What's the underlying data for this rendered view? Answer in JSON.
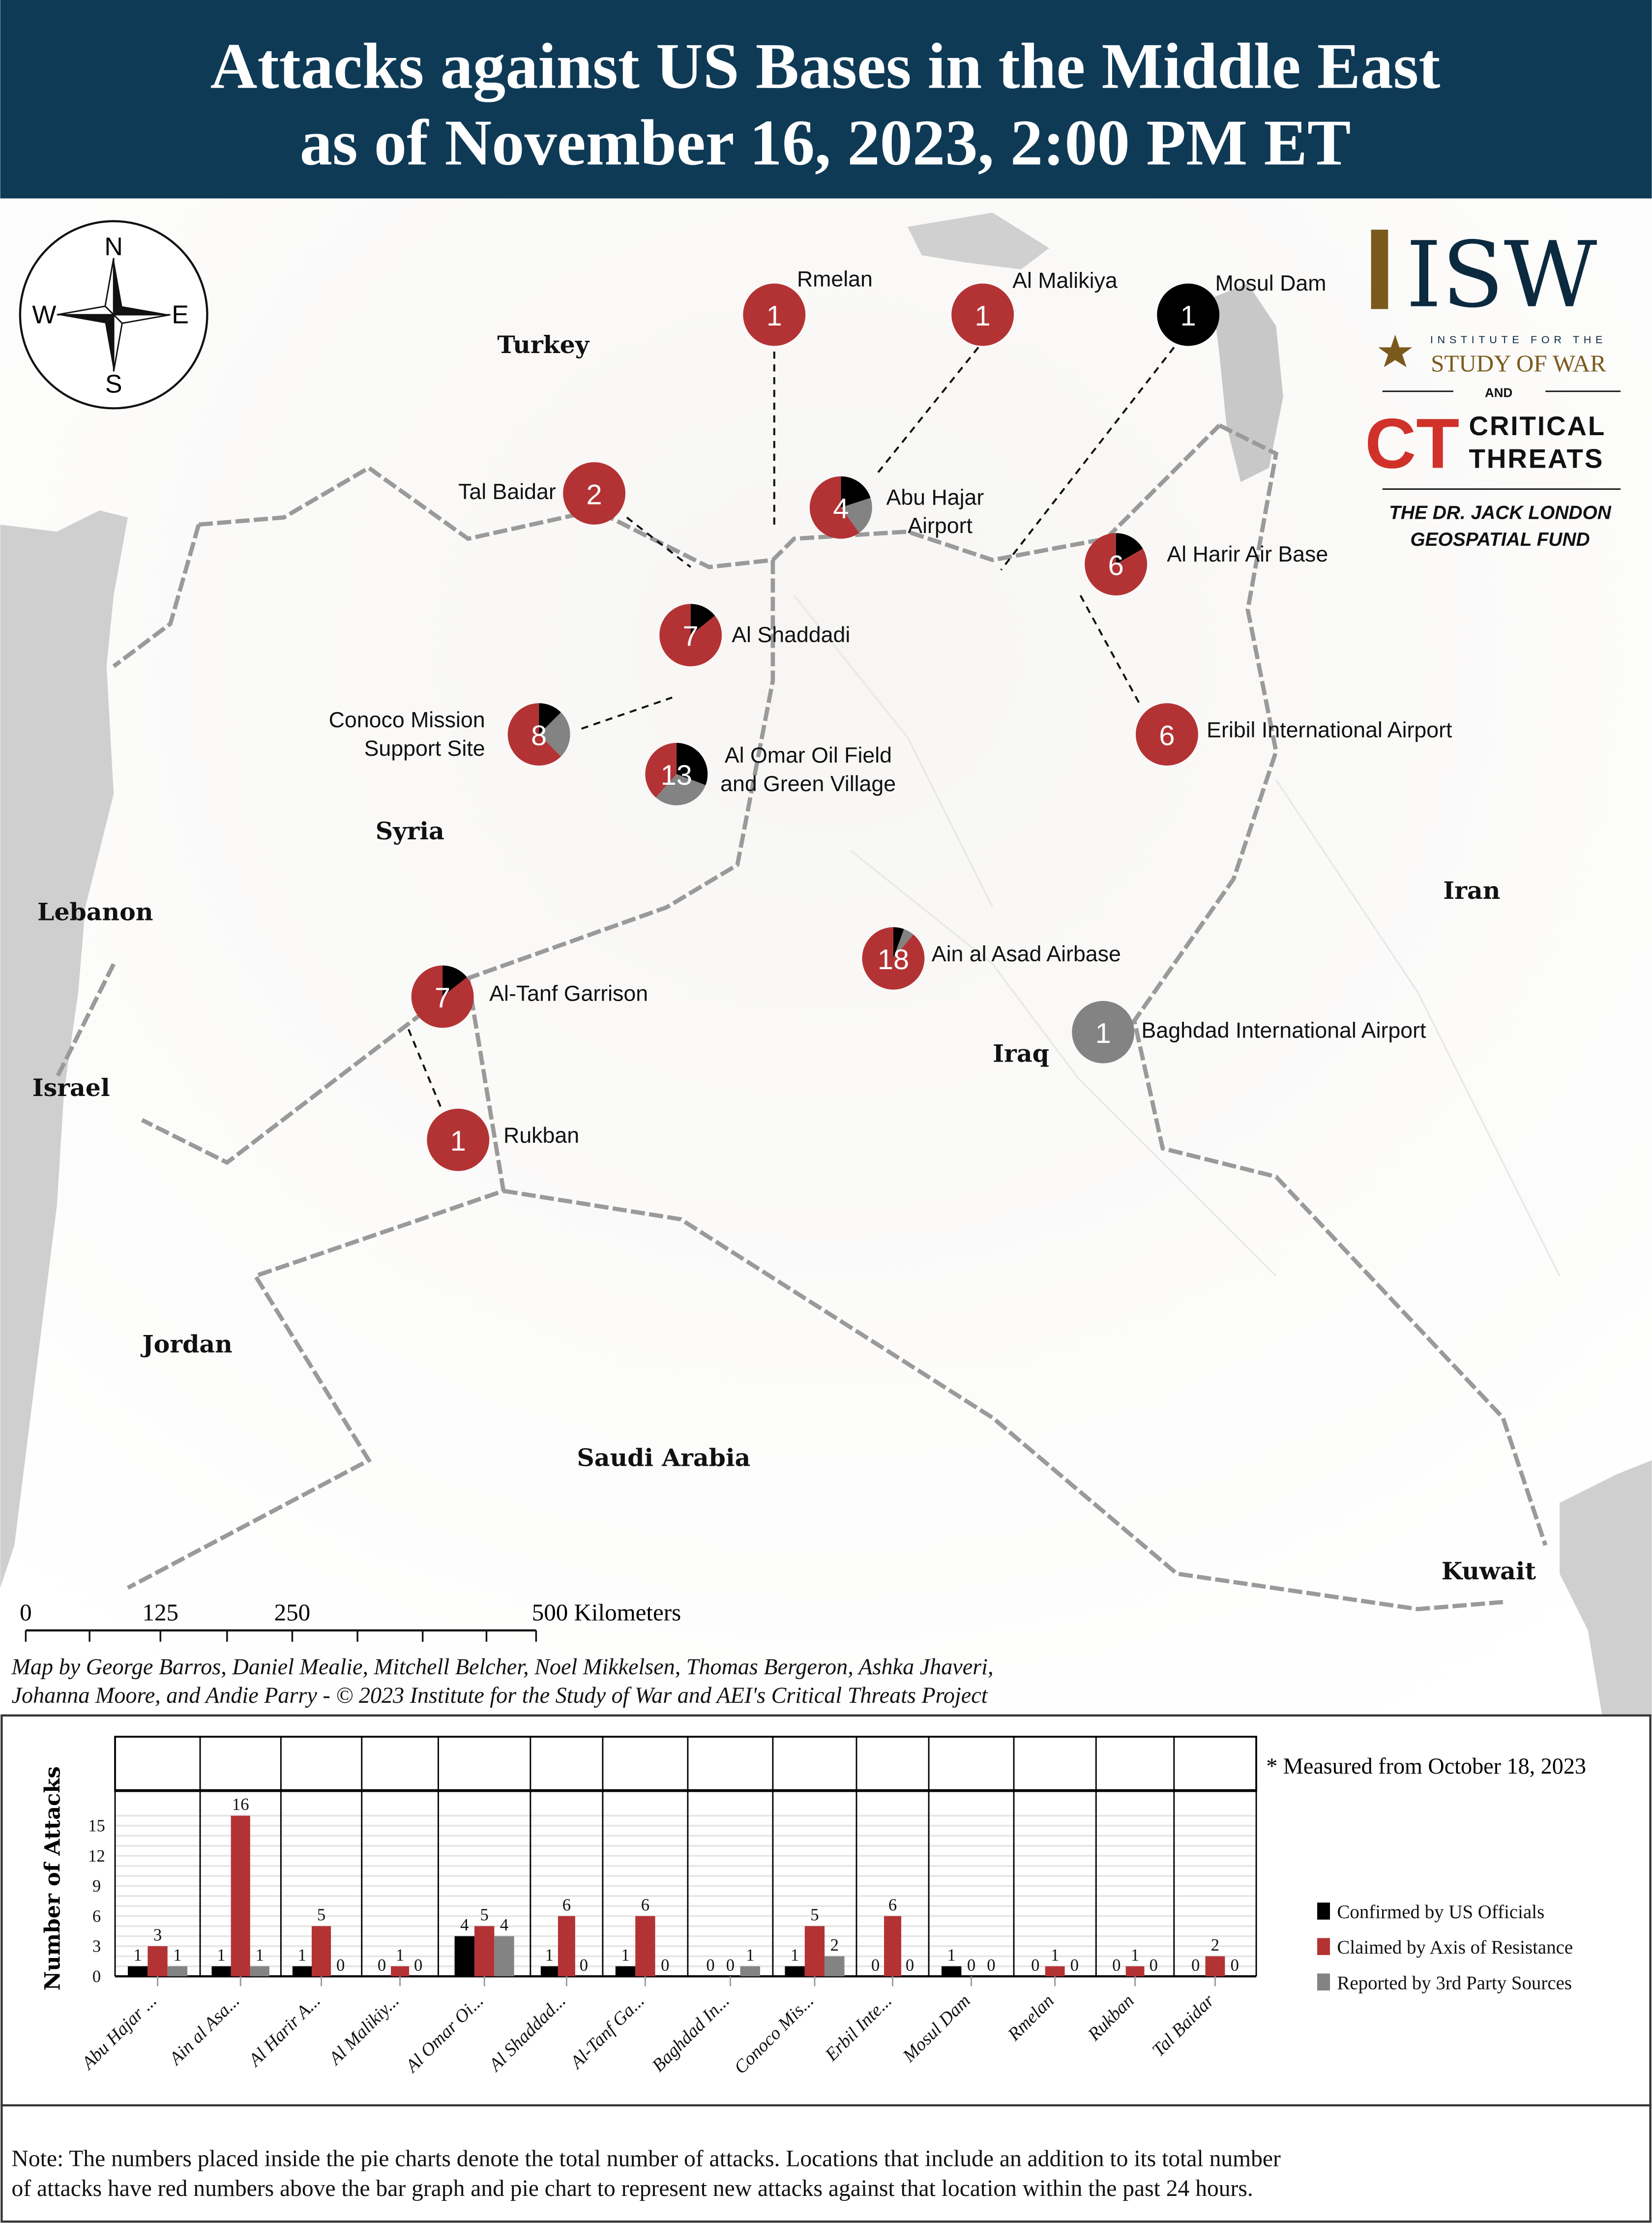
{
  "header": {
    "title_line1": "Attacks against US Bases in the Middle East",
    "title_line2": "as of November 16, 2023, 2:00 PM ET",
    "bg_color": "#0e3a56"
  },
  "compass": {
    "n": "N",
    "s": "S",
    "e": "E",
    "w": "W"
  },
  "logo": {
    "isw": "ISW",
    "isw_sub1": "INSTITUTE FOR THE",
    "isw_sub2": "STUDY OF WAR",
    "and": "AND",
    "ct_mark": "CT",
    "ct_line1": "CRITICAL",
    "ct_line2": "THREATS",
    "fund_line1": "THE DR. JACK LONDON",
    "fund_line2": "GEOSPATIAL FUND"
  },
  "countries": [
    "Turkey",
    "Syria",
    "Lebanon",
    "Israel",
    "Jordan",
    "Saudi Arabia",
    "Iraq",
    "Iran",
    "Kuwait"
  ],
  "colors": {
    "confirmed": "#000000",
    "claimed": "#b33335",
    "reported": "#838383"
  },
  "locations": [
    {
      "name": "Rmelan",
      "total": "1"
    },
    {
      "name": "Al Malikiya",
      "total": "1"
    },
    {
      "name": "Mosul Dam",
      "total": "1"
    },
    {
      "name": "Tal Baidar",
      "total": "2"
    },
    {
      "name": "Abu Hajar",
      "name2": "Airport",
      "total": "4"
    },
    {
      "name": "Al Harir Air Base",
      "total": "6"
    },
    {
      "name": "Al Shaddadi",
      "total": "7"
    },
    {
      "name": "Conoco Mission",
      "name2": "Support Site",
      "total": "8"
    },
    {
      "name": "Al Omar Oil Field",
      "name2": "and Green Village",
      "total": "13"
    },
    {
      "name": "Eribil International Airport",
      "total": "6"
    },
    {
      "name": "Ain al Asad Airbase",
      "total": "18"
    },
    {
      "name": "Baghdad International Airport",
      "total": "1"
    },
    {
      "name": "Al-Tanf Garrison",
      "total": "7"
    },
    {
      "name": "Rukban",
      "total": "1"
    }
  ],
  "scale_bar": {
    "labels": [
      "0",
      "125",
      "250",
      "500 Kilometers"
    ]
  },
  "credit": {
    "line1": "Map by George Barros, Daniel Mealie, Mitchell Belcher, Noel Mikkelsen, Thomas Bergeron, Ashka Jhaveri,",
    "line2": "Johanna Moore, and Andie Parry - © 2023 Institute for the Study of War and AEI's Critical Threats Project"
  },
  "chart_data": {
    "type": "bar",
    "ylabel": "Number of Attacks",
    "ylim": [
      0,
      18.5
    ],
    "yticks": [
      "0",
      "3",
      "6",
      "9",
      "12",
      "15"
    ],
    "grid": true,
    "legend_position": "right",
    "categories": [
      "Abu Hajar ...",
      "Ain al Asa...",
      "Al Harir A...",
      "Al Malikiy...",
      "Al Omar Oi...",
      "Al Shaddad...",
      "Al-Tanf Ga...",
      "Baghdad In...",
      "Conoco Mis...",
      "Erbil Inte...",
      "Mosul Dam",
      "Rmelan",
      "Rukban",
      "Tal Baidar"
    ],
    "series": [
      {
        "name": "Confirmed by US Officials",
        "color": "#000000",
        "values": [
          1,
          1,
          1,
          0,
          4,
          1,
          1,
          0,
          1,
          0,
          1,
          0,
          0,
          0
        ]
      },
      {
        "name": "Claimed by Axis of Resistance",
        "color": "#b33335",
        "values": [
          3,
          16,
          5,
          1,
          5,
          6,
          6,
          0,
          5,
          6,
          0,
          1,
          1,
          2
        ]
      },
      {
        "name": "Reported by 3rd Party Sources",
        "color": "#838383",
        "values": [
          1,
          1,
          0,
          0,
          4,
          0,
          0,
          1,
          2,
          0,
          0,
          0,
          0,
          0
        ]
      }
    ],
    "annotation": "* Measured from October 18, 2023"
  },
  "note": {
    "line1": "Note: The numbers placed inside the pie charts denote the total number of attacks. Locations that include an addition to its total number",
    "line2": "of attacks have red numbers above the bar graph and pie chart to represent new attacks against that location within the past 24 hours."
  }
}
